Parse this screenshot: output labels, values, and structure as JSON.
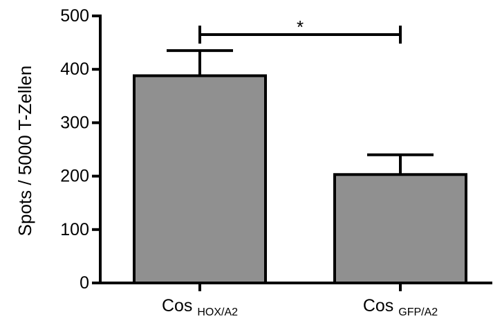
{
  "chart_data": {
    "type": "bar",
    "title": "",
    "xlabel": "",
    "ylabel": "Spots / 5000 T-Zellen",
    "ylim": [
      0,
      500
    ],
    "yticks": [
      0,
      100,
      200,
      300,
      400,
      500
    ],
    "categories": [
      {
        "main": "Cos",
        "sub": "HOX/A2"
      },
      {
        "main": "Cos",
        "sub": "GFP/A2"
      }
    ],
    "values": [
      388,
      203
    ],
    "error_upper": [
      435,
      240
    ],
    "significance": {
      "from": 0,
      "to": 1,
      "y": 465,
      "label": "*"
    },
    "bar_color": "#909090",
    "edge_color": "#000000"
  }
}
